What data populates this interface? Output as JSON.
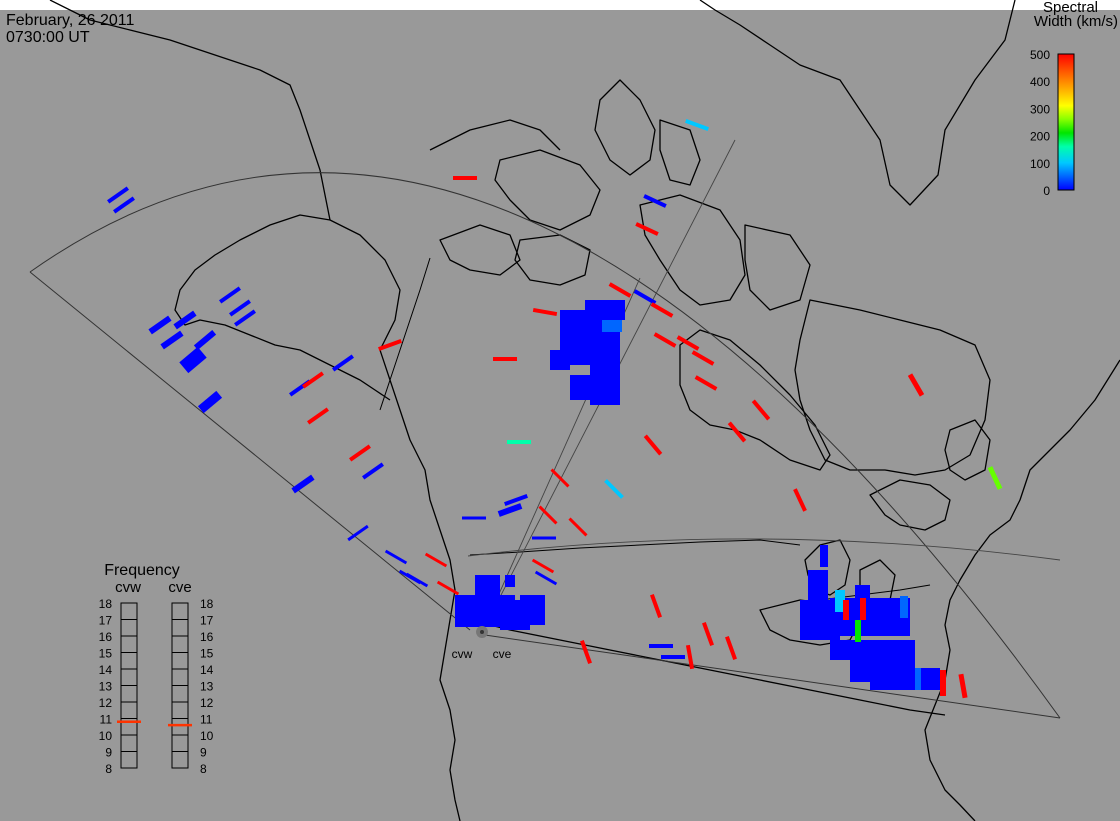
{
  "header": {
    "date": "February, 26 2011",
    "time": "0730:00 UT"
  },
  "colorbar": {
    "title_line1": "Spectral",
    "title_line2": "Width (km/s)",
    "ticks": [
      "500",
      "400",
      "300",
      "200",
      "100",
      "0"
    ],
    "range": [
      0,
      500
    ]
  },
  "radars": [
    {
      "code": "cvw",
      "frequency_mhz": 10.8
    },
    {
      "code": "cve",
      "frequency_mhz": 10.6
    }
  ],
  "frequency_panel": {
    "title": "Frequency",
    "ticks": [
      "18",
      "17",
      "16",
      "15",
      "14",
      "13",
      "12",
      "11",
      "10",
      "9",
      "8"
    ],
    "range": [
      8,
      18
    ]
  },
  "colors": {
    "background": "#999999",
    "frame": "#ffffff",
    "map_lines": "#000000",
    "marker": "#ff3300",
    "scale": [
      "#0000ff",
      "#0066ff",
      "#00c8ff",
      "#00ffaa",
      "#00e600",
      "#88ff00",
      "#ffff00",
      "#ffbb00",
      "#ff6600",
      "#ff0000"
    ]
  }
}
